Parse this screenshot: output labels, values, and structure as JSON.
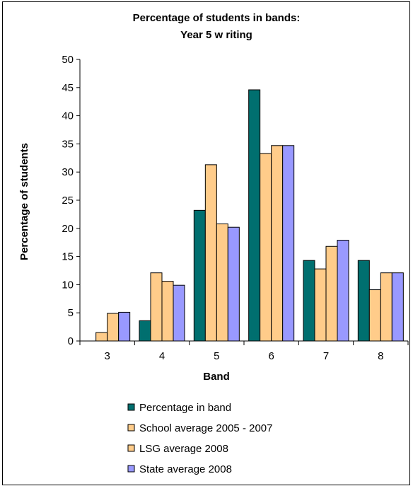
{
  "chart_data": {
    "type": "bar",
    "title_line1": "Percentage of students in bands:",
    "title_line2": "Year 5 w riting",
    "xlabel": "Band",
    "ylabel": "Percentage of students",
    "ylim": [
      0,
      50
    ],
    "yticks": [
      0,
      5,
      10,
      15,
      20,
      25,
      30,
      35,
      40,
      45,
      50
    ],
    "categories": [
      "3",
      "4",
      "5",
      "6",
      "7",
      "8"
    ],
    "grid": false,
    "legend_position": "bottom",
    "series": [
      {
        "name": "Percentage in band",
        "color": "#006F6F",
        "values": [
          0,
          3.6,
          23.2,
          44.6,
          14.3,
          14.3
        ]
      },
      {
        "name": "School average 2005 - 2007",
        "color": "#FFCC8A",
        "values": [
          1.5,
          12.1,
          31.3,
          33.3,
          12.8,
          9.1
        ]
      },
      {
        "name": "LSG average 2008",
        "color": "#FFCC8A",
        "values": [
          4.9,
          10.6,
          20.8,
          34.7,
          16.8,
          12.1
        ]
      },
      {
        "name": "State average 2008",
        "color": "#9999FF",
        "values": [
          5.1,
          9.9,
          20.2,
          34.7,
          17.9,
          12.1
        ]
      }
    ]
  }
}
